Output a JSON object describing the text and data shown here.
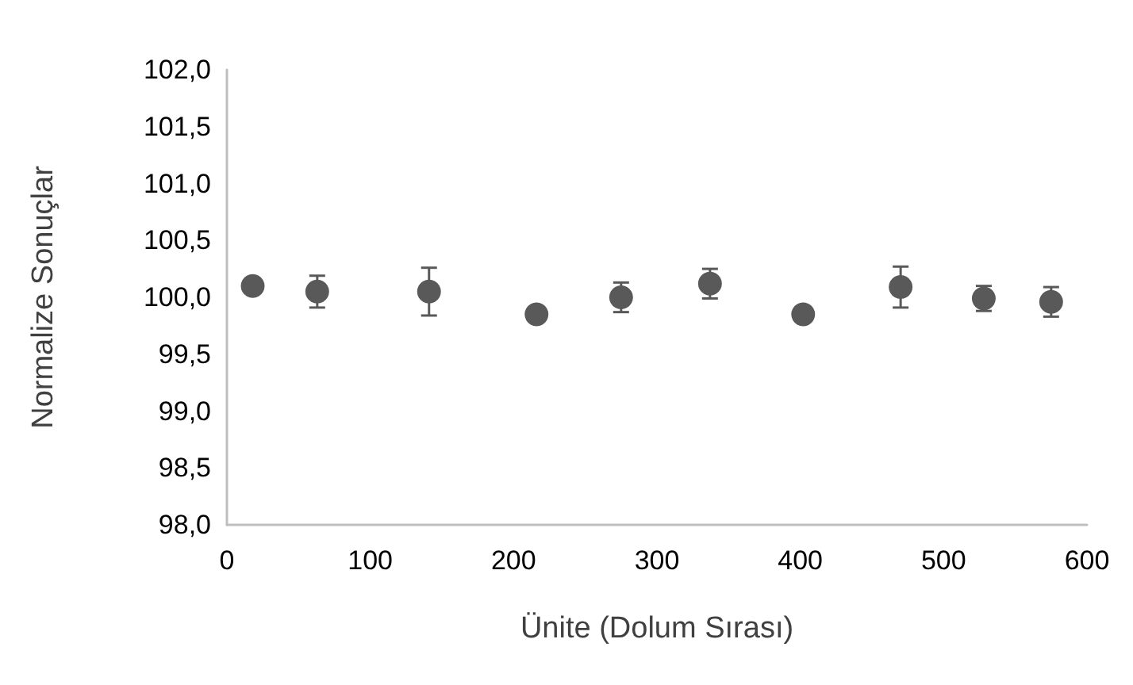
{
  "chart_data": {
    "type": "scatter",
    "xlabel": "Ünite (Dolum Sırası)",
    "ylabel": "Normalize Sonuçlar",
    "x": [
      18,
      63,
      141,
      216,
      275,
      337,
      402,
      470,
      528,
      575
    ],
    "series": [
      {
        "color": "#595959",
        "values": [
          100.1,
          100.05,
          100.05,
          99.85,
          100.0,
          100.12,
          99.85,
          100.09,
          99.99,
          99.96
        ],
        "errors": [
          0.03,
          0.14,
          0.21,
          0.02,
          0.13,
          0.13,
          0.03,
          0.18,
          0.11,
          0.13
        ]
      }
    ],
    "xlim": [
      0,
      600
    ],
    "xticks": [
      0,
      100,
      200,
      300,
      400,
      500,
      600
    ],
    "ylim": [
      98,
      102
    ],
    "yticks": [
      {
        "value": 98,
        "label": "98,0"
      },
      {
        "value": 98.5,
        "label": "98,5"
      },
      {
        "value": 99,
        "label": "99,0"
      },
      {
        "value": 99.5,
        "label": "99,5"
      },
      {
        "value": 100,
        "label": "100,0"
      },
      {
        "value": 100.5,
        "label": "100,5"
      },
      {
        "value": 101,
        "label": "101,0"
      },
      {
        "value": 101.5,
        "label": "101,5"
      },
      {
        "value": 102,
        "label": "102,0"
      }
    ],
    "grid": false,
    "marker": "circle"
  }
}
